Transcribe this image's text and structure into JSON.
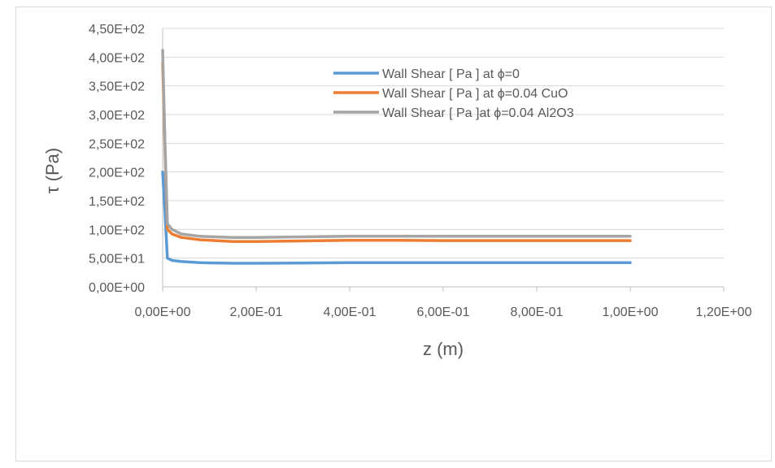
{
  "chart_data": {
    "type": "line",
    "title": "",
    "xlabel": "z (m)",
    "ylabel": "τ (Pa)",
    "xlim": [
      0,
      1.2
    ],
    "ylim": [
      0,
      450
    ],
    "x_ticks": [
      0,
      0.2,
      0.4,
      0.6,
      0.8,
      1.0,
      1.2
    ],
    "x_tick_labels": [
      "0,00E+00",
      "2,00E-01",
      "4,00E-01",
      "6,00E-01",
      "8,00E-01",
      "1,00E+00",
      "1,20E+00"
    ],
    "y_ticks": [
      0,
      50,
      100,
      150,
      200,
      250,
      300,
      350,
      400,
      450
    ],
    "y_tick_labels": [
      "0,00E+00",
      "5,00E+01",
      "1,00E+02",
      "1,50E+02",
      "2,00E+02",
      "2,50E+02",
      "3,00E+02",
      "3,50E+02",
      "4,00E+02",
      "4,50E+02"
    ],
    "grid": "horizontal",
    "legend_position": "top-right",
    "series": [
      {
        "name": "Wall Shear [ Pa ] at ϕ=0",
        "color": "#5b9bd5",
        "x": [
          0,
          0.005,
          0.01,
          0.02,
          0.04,
          0.08,
          0.15,
          0.2,
          0.3,
          0.4,
          0.5,
          0.6,
          0.7,
          0.8,
          0.9,
          1.0
        ],
        "y": [
          200,
          130,
          50,
          46,
          44,
          42,
          41,
          41,
          41.5,
          42,
          42,
          42,
          42,
          42,
          42,
          42
        ]
      },
      {
        "name": "Wall Shear [ Pa ] at ϕ=0.04 CuO",
        "color": "#ed7d31",
        "x": [
          0,
          0.005,
          0.01,
          0.02,
          0.04,
          0.08,
          0.15,
          0.2,
          0.3,
          0.4,
          0.5,
          0.6,
          0.7,
          0.8,
          0.9,
          1.0
        ],
        "y": [
          390,
          240,
          100,
          92,
          86,
          82,
          79,
          79,
          80,
          81,
          81,
          80.5,
          80.5,
          80.5,
          80.5,
          80.5
        ]
      },
      {
        "name": "Wall Shear [ Pa ]at ϕ=0.04 Al2O3",
        "color": "#a5a5a5",
        "x": [
          0,
          0.005,
          0.01,
          0.02,
          0.04,
          0.08,
          0.15,
          0.2,
          0.3,
          0.4,
          0.5,
          0.6,
          0.7,
          0.8,
          0.9,
          1.0
        ],
        "y": [
          412,
          250,
          110,
          100,
          92,
          88,
          86,
          86,
          87,
          88,
          88,
          88,
          88,
          88,
          88,
          88
        ]
      }
    ]
  }
}
